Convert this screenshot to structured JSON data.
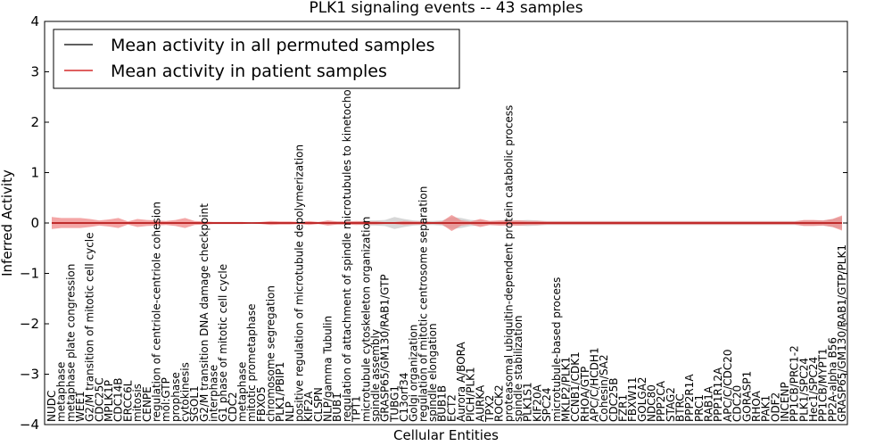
{
  "chart_data": {
    "type": "line",
    "title": "PLK1 signaling events -- 43 samples",
    "xlabel": "Cellular Entities",
    "ylabel": "Inferred Activity",
    "ylim": [
      -4,
      4
    ],
    "yticks": [
      -4,
      -3,
      -2,
      -1,
      0,
      1,
      2,
      3,
      4
    ],
    "ytick_labels": [
      "−4",
      "−3",
      "−2",
      "−1",
      "0",
      "1",
      "2",
      "3",
      "4"
    ],
    "legend": {
      "placement": "top-left",
      "entries": [
        {
          "label": "Mean activity in all permuted samples",
          "color": "#000000"
        },
        {
          "label": "Mean activity in patient samples",
          "color": "#cc0000"
        }
      ]
    },
    "colors": {
      "patient_band": "#f08080",
      "permuted_band": "#bdbdbd",
      "patient_line": "#cc0000",
      "permuted_line": "#000000"
    },
    "categories": [
      "NUDC",
      "metaphase",
      "metaphase plate congression",
      "WEE1",
      "G2/M transition of mitotic cell cycle",
      "CDC25C",
      "MPLK1P",
      "CDC14B",
      "ERCC6L",
      "mitosis",
      "CENPE",
      "regulation of centriole-centriole cohesion",
      "mol:GTP",
      "prophase",
      "cytokinesis",
      "SGOL1",
      "G2/M transition DNA damage checkpoint",
      "interphase",
      "G1 phase of mitotic cell cycle",
      "CDC2",
      "metaphase",
      "mitotic prometaphase",
      "FBXO5",
      "chromosome segregation",
      "PLK1/PBIP1",
      "NLP",
      "positive regulation of microtubule depolymerization",
      "KIF2A",
      "CLSPN",
      "NLP/gamma Tubulin",
      "BUB1",
      "regulation of attachment of spindle microtubules to kinetochore",
      "TPT1",
      "microtubule cytoskeleton organization",
      "spindle assembly",
      "GRASP65/GM130/RAB1/GTP",
      "TUBG1",
      "C13orf34",
      "Golgi organization",
      "regulation of mitotic centrosome separation",
      "spindle elongation",
      "BUB1B",
      "ECT2",
      "Aurora A/BORA",
      "PICH/PLK1",
      "AURKA",
      "TPX2",
      "ROCK2",
      "proteasomal ubiquitin-dependent protein catabolic process",
      "spindle stabilization",
      "PLK1S1",
      "KIF20A",
      "SPC24",
      "microtubule-based process",
      "MKLP2/PLK1",
      "CCNB1/CDK1",
      "RHOA/GTP",
      "APC/C/HCDH1",
      "Cohesin/SA2",
      "CDC25B",
      "FZR1",
      "FBXW11",
      "GOLGA2",
      "NDC80",
      "PPP2CA",
      "STAG2",
      "BTRC",
      "PPP2R1A",
      "PRC1",
      "RAB1A",
      "PPP1R12A",
      "APC/C/CDC20",
      "CDC20",
      "GORASP1",
      "RHOA",
      "PAK1",
      "ODF2",
      "INCENP",
      "PP1CB/PRC1-2",
      "PLK1/SPC24",
      "Hec1/SPC24",
      "PP1CB/MYPT1",
      "PP2A-alpha B56",
      "GRASP65/GM130/RAB1/GTP/PLK1"
    ],
    "series": [
      {
        "name": "Mean activity in patient samples",
        "values": [
          0.0,
          0.0,
          0.0,
          0.0,
          0.0,
          0.0,
          0.0,
          0.0,
          0.0,
          0.0,
          0.0,
          0.0,
          0.0,
          0.0,
          0.0,
          0.0,
          0.0,
          0.0,
          0.0,
          0.0,
          0.0,
          0.0,
          0.0,
          0.0,
          0.0,
          0.0,
          0.0,
          0.0,
          0.0,
          0.0,
          0.0,
          0.0,
          0.0,
          0.0,
          0.0,
          0.0,
          0.0,
          0.0,
          0.0,
          0.0,
          0.0,
          0.0,
          0.0,
          0.0,
          0.0,
          0.0,
          0.0,
          0.0,
          0.0,
          0.0,
          0.0,
          0.0,
          0.0,
          0.0,
          0.0,
          0.0,
          0.0,
          0.0,
          0.0,
          0.0,
          0.0,
          0.0,
          0.0,
          0.0,
          0.0,
          0.0,
          0.0,
          0.0,
          0.0,
          0.0,
          0.0,
          0.0,
          0.0,
          0.0,
          0.0,
          0.0,
          0.0,
          0.0,
          0.0,
          0.0,
          0.0,
          0.0,
          0.0,
          0.0
        ],
        "spread": [
          0.12,
          0.1,
          0.1,
          0.1,
          0.08,
          0.05,
          0.07,
          0.1,
          0.03,
          0.08,
          0.06,
          0.05,
          0.04,
          0.06,
          0.1,
          0.04,
          0.03,
          0.02,
          0.02,
          0.02,
          0.02,
          0.01,
          0.02,
          0.04,
          0.03,
          0.03,
          0.02,
          0.04,
          0.02,
          0.05,
          0.03,
          0.03,
          0.04,
          0.03,
          0.03,
          0.02,
          0.02,
          0.04,
          0.03,
          0.03,
          0.02,
          0.03,
          0.16,
          0.05,
          0.03,
          0.08,
          0.04,
          0.05,
          0.05,
          0.05,
          0.04,
          0.04,
          0.03,
          0.03,
          0.03,
          0.03,
          0.03,
          0.03,
          0.03,
          0.03,
          0.03,
          0.03,
          0.03,
          0.03,
          0.03,
          0.03,
          0.03,
          0.03,
          0.03,
          0.03,
          0.03,
          0.03,
          0.03,
          0.03,
          0.03,
          0.03,
          0.03,
          0.03,
          0.03,
          0.06,
          0.06,
          0.05,
          0.08,
          0.15
        ]
      },
      {
        "name": "Mean activity in all permuted samples",
        "values": [
          0.0,
          0.0,
          0.0,
          0.0,
          0.0,
          0.0,
          0.0,
          0.0,
          0.0,
          0.0,
          0.0,
          0.0,
          0.0,
          0.0,
          0.0,
          0.0,
          0.0,
          0.0,
          0.0,
          0.0,
          0.0,
          0.0,
          0.0,
          0.0,
          0.0,
          0.0,
          0.0,
          0.0,
          0.0,
          0.0,
          0.0,
          0.0,
          0.0,
          0.0,
          0.0,
          0.0,
          0.0,
          0.0,
          0.0,
          0.0,
          0.0,
          0.0,
          0.0,
          0.0,
          0.0,
          0.0,
          0.0,
          0.0,
          0.0,
          0.0,
          0.0,
          0.0,
          0.0,
          0.0,
          0.0,
          0.0,
          0.0,
          0.0,
          0.0,
          0.0,
          0.0,
          0.0,
          0.0,
          0.0,
          0.0,
          0.0,
          0.0,
          0.0,
          0.0,
          0.0,
          0.0,
          0.0,
          0.0,
          0.0,
          0.0,
          0.0,
          0.0,
          0.0,
          0.0,
          0.0,
          0.0,
          0.0,
          0.0,
          0.0
        ],
        "spread": [
          0.02,
          0.02,
          0.02,
          0.02,
          0.02,
          0.02,
          0.02,
          0.02,
          0.02,
          0.02,
          0.02,
          0.02,
          0.02,
          0.02,
          0.02,
          0.02,
          0.02,
          0.02,
          0.02,
          0.02,
          0.02,
          0.02,
          0.02,
          0.02,
          0.02,
          0.02,
          0.02,
          0.02,
          0.02,
          0.03,
          0.03,
          0.03,
          0.03,
          0.05,
          0.05,
          0.06,
          0.12,
          0.08,
          0.05,
          0.04,
          0.04,
          0.05,
          0.12,
          0.1,
          0.06,
          0.05,
          0.04,
          0.04,
          0.04,
          0.05,
          0.06,
          0.05,
          0.04,
          0.04,
          0.04,
          0.04,
          0.04,
          0.04,
          0.04,
          0.04,
          0.04,
          0.04,
          0.04,
          0.04,
          0.04,
          0.04,
          0.04,
          0.04,
          0.04,
          0.04,
          0.04,
          0.04,
          0.04,
          0.04,
          0.04,
          0.04,
          0.04,
          0.04,
          0.04,
          0.05,
          0.05,
          0.05,
          0.08,
          0.12
        ]
      }
    ]
  }
}
